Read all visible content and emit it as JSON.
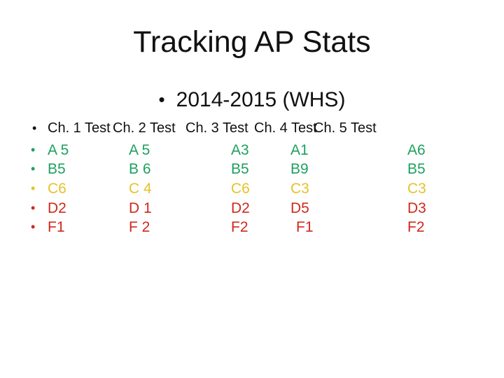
{
  "slide": {
    "title": "Tracking AP Stats",
    "subtitle": {
      "bullet": "•",
      "text": "2014-2015 (WHS)"
    },
    "table": {
      "header": {
        "bullet": "•",
        "cells": [
          "Ch. 1 Test",
          "Ch. 2 Test",
          "Ch. 3 Test",
          "Ch. 4 Test",
          "Ch. 5 Test"
        ]
      },
      "rows": [
        {
          "grade": "A",
          "color": "#1FA05F",
          "bullet": "•",
          "cells": [
            "A 5",
            "A 5",
            "A3",
            "A1",
            "A6"
          ]
        },
        {
          "grade": "B",
          "color": "#1FA05F",
          "bullet": "•",
          "cells": [
            "B5",
            "B 6",
            "B5",
            "B9",
            "B5"
          ]
        },
        {
          "grade": "C",
          "color": "#E6C229",
          "bullet": "•",
          "cells": [
            "C6",
            "C 4",
            "C6",
            "C3",
            "C3"
          ]
        },
        {
          "grade": "D",
          "color": "#D0281E",
          "bullet": "•",
          "cells": [
            "D2",
            "D 1",
            "D2",
            "D5",
            "D3"
          ]
        },
        {
          "grade": "F",
          "color": "#D0281E",
          "bullet": "•",
          "cells": [
            "F1",
            "F 2",
            "F2",
            "F1",
            "F2"
          ]
        }
      ]
    },
    "colors": {
      "background": "#FFFFFF",
      "text": "#111111",
      "grade_ab_green": "#1FA05F",
      "grade_c_yellow": "#E6C229",
      "grade_df_red": "#D0281E"
    }
  }
}
